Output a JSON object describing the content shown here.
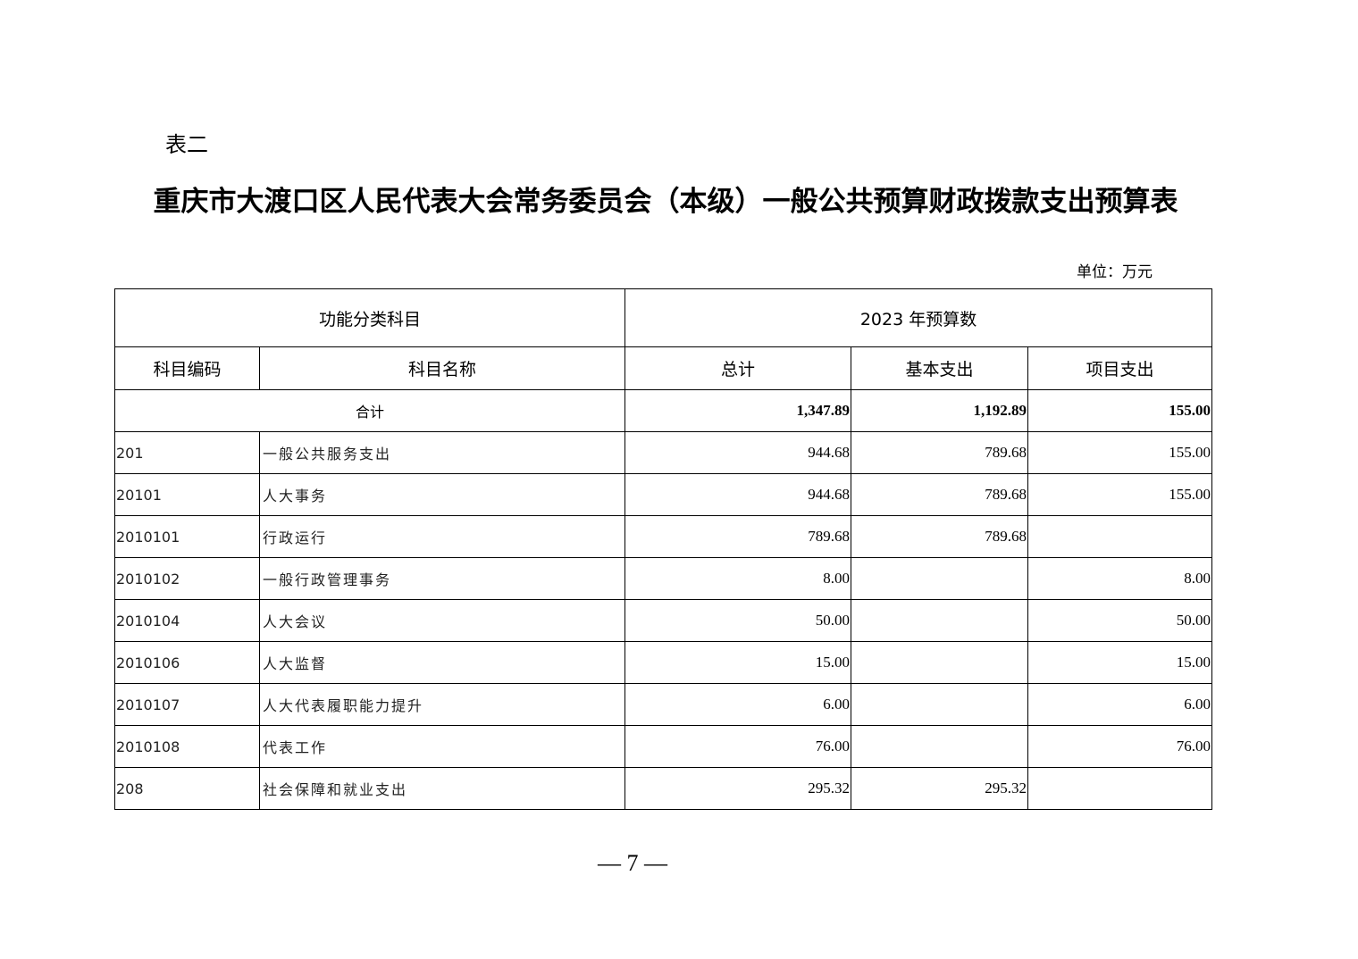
{
  "table_label": "表二",
  "title": "重庆市大渡口区人民代表大会常务委员会（本级）一般公共预算财政拨款支出预算表",
  "unit": "单位：万元",
  "header": {
    "group_left": "功能分类科目",
    "group_right": "2023 年预算数",
    "columns": [
      "科目编码",
      "科目名称",
      "总计",
      "基本支出",
      "项目支出"
    ]
  },
  "total": {
    "label": "合计",
    "total": "1,347.89",
    "basic": "1,192.89",
    "project": "155.00"
  },
  "rows": [
    {
      "code": "201",
      "name": "一般公共服务支出",
      "total": "944.68",
      "basic": "789.68",
      "project": "155.00"
    },
    {
      "code": "20101",
      "name": "人大事务",
      "total": "944.68",
      "basic": "789.68",
      "project": "155.00"
    },
    {
      "code": "2010101",
      "name": "行政运行",
      "total": "789.68",
      "basic": "789.68",
      "project": ""
    },
    {
      "code": "2010102",
      "name": "一般行政管理事务",
      "total": "8.00",
      "basic": "",
      "project": "8.00"
    },
    {
      "code": "2010104",
      "name": "人大会议",
      "total": "50.00",
      "basic": "",
      "project": "50.00"
    },
    {
      "code": "2010106",
      "name": "人大监督",
      "total": "15.00",
      "basic": "",
      "project": "15.00"
    },
    {
      "code": "2010107",
      "name": "人大代表履职能力提升",
      "total": "6.00",
      "basic": "",
      "project": "6.00"
    },
    {
      "code": "2010108",
      "name": "代表工作",
      "total": "76.00",
      "basic": "",
      "project": "76.00"
    },
    {
      "code": "208",
      "name": "社会保障和就业支出",
      "total": "295.32",
      "basic": "295.32",
      "project": ""
    }
  ],
  "page_number": "— 7 —"
}
